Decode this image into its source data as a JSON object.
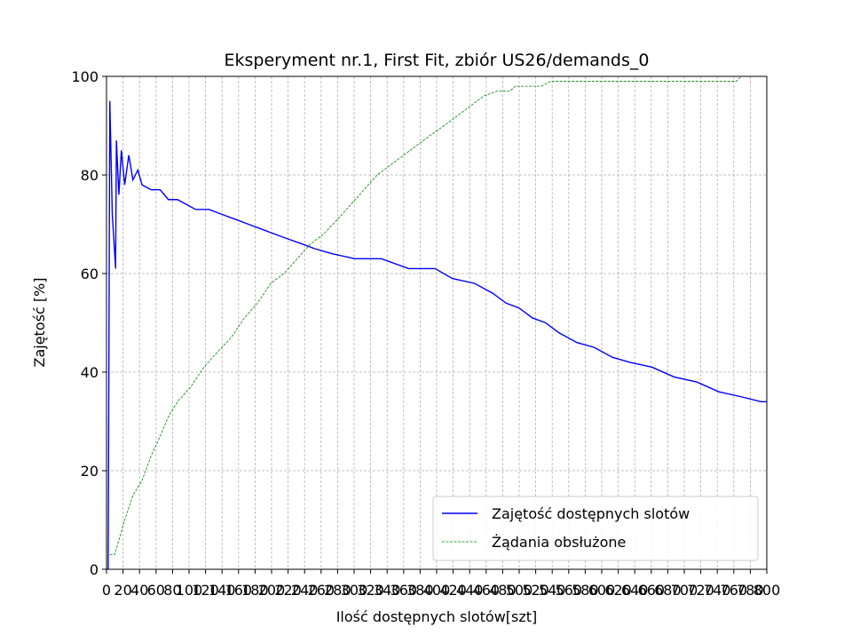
{
  "chart_data": {
    "type": "line",
    "title": "Eksperyment nr.1, First Fit, zbiór US26/demands_0",
    "x_label": "Ilość dostępnych slotów[szt]",
    "y_label": "Zajętość [%]",
    "xlim": [
      0,
      800
    ],
    "ylim": [
      0,
      100
    ],
    "xticks": [
      0,
      20,
      40,
      60,
      80,
      100,
      120,
      140,
      160,
      180,
      200,
      220,
      240,
      260,
      280,
      300,
      320,
      340,
      360,
      380,
      400,
      420,
      440,
      460,
      480,
      500,
      520,
      540,
      560,
      580,
      600,
      620,
      640,
      660,
      680,
      700,
      720,
      740,
      760,
      780,
      800
    ],
    "yticks": [
      0,
      20,
      40,
      60,
      80,
      100
    ],
    "grid": true,
    "legend": "lower right",
    "series": [
      {
        "name": "Zajętość dostępnych slotów",
        "color": "#0000ff",
        "style": "solid",
        "x": [
          2,
          4,
          7,
          11,
          12,
          15,
          18,
          22,
          27,
          32,
          38,
          43,
          54,
          65,
          75,
          86,
          97,
          108,
          124,
          140,
          156,
          172,
          188,
          204,
          220,
          237,
          253,
          274,
          301,
          333,
          366,
          398,
          419,
          446,
          468,
          484,
          500,
          516,
          532,
          548,
          570,
          591,
          613,
          634,
          661,
          688,
          715,
          742,
          769,
          793,
          800
        ],
        "values": [
          0,
          95,
          72,
          61,
          87,
          76,
          85,
          78,
          84,
          79,
          81,
          78,
          77,
          77,
          75,
          75,
          74,
          73,
          73,
          72,
          71,
          70,
          69,
          68,
          67,
          66,
          65,
          64,
          63,
          63,
          61,
          61,
          59,
          58,
          56,
          54,
          53,
          51,
          50,
          48,
          46,
          45,
          43,
          42,
          41,
          39,
          38,
          36,
          35,
          34,
          34
        ]
      },
      {
        "name": "Żądania obsłużone",
        "color": "#008000",
        "style": "dashed",
        "x": [
          4,
          10,
          22,
          32,
          43,
          54,
          65,
          75,
          86,
          102,
          118,
          134,
          151,
          167,
          183,
          199,
          215,
          231,
          247,
          263,
          280,
          296,
          312,
          328,
          344,
          360,
          376,
          392,
          409,
          425,
          441,
          457,
          473,
          489,
          495,
          527,
          538,
          624,
          763,
          769,
          800
        ],
        "values": [
          3,
          3,
          10,
          15,
          18,
          23,
          27,
          31,
          34,
          37,
          41,
          44,
          47,
          51,
          54,
          58,
          60,
          63,
          66,
          68,
          71,
          74,
          77,
          80,
          82,
          84,
          86,
          88,
          90,
          92,
          94,
          96,
          97,
          97,
          98,
          98,
          99,
          99,
          99,
          100,
          100
        ]
      }
    ]
  }
}
